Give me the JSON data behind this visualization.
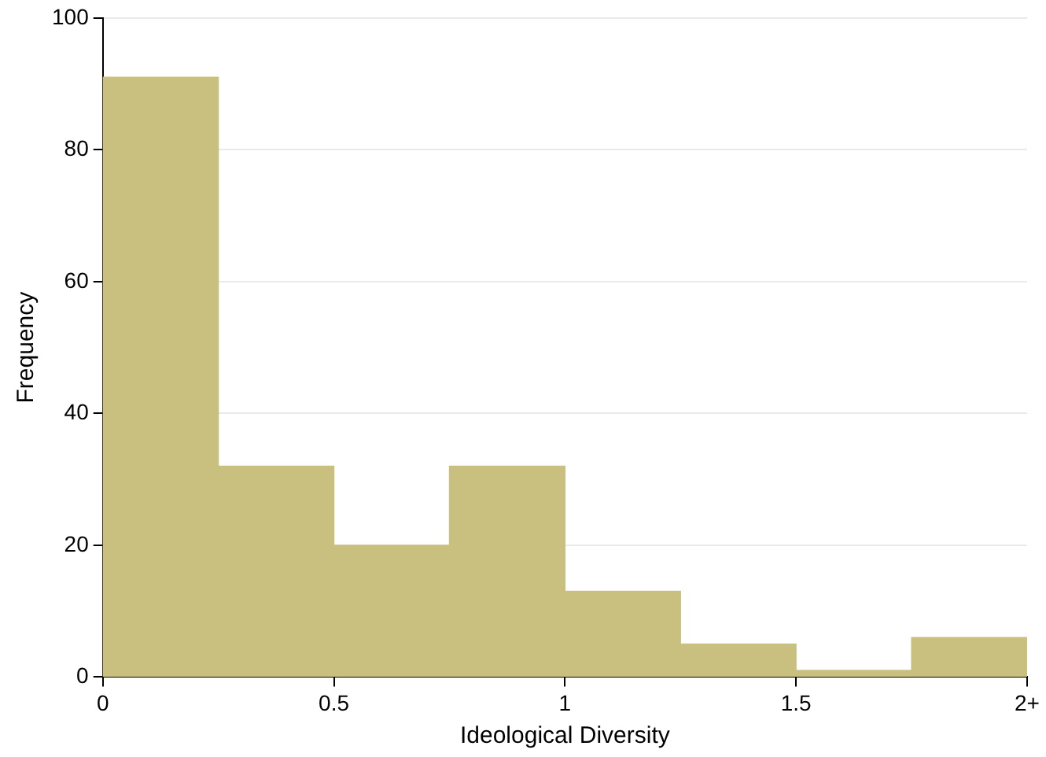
{
  "chart_data": {
    "type": "histogram",
    "xlabel": "Ideological Diversity",
    "ylabel": "Frequency",
    "bins": [
      0,
      0.25,
      0.5,
      0.75,
      1,
      1.25,
      1.5,
      1.75,
      2
    ],
    "values": [
      91,
      32,
      20,
      32,
      13,
      5,
      1,
      6
    ],
    "color": "#c9c080",
    "xlim": [
      0,
      2
    ],
    "xticks": [
      0,
      0.5,
      1,
      1.5,
      {
        "value": 2,
        "label": "2+"
      }
    ],
    "ylim": [
      0,
      100
    ],
    "yticks": [
      0,
      20,
      40,
      60,
      80,
      100
    ],
    "grid": "y",
    "legend": false
  }
}
